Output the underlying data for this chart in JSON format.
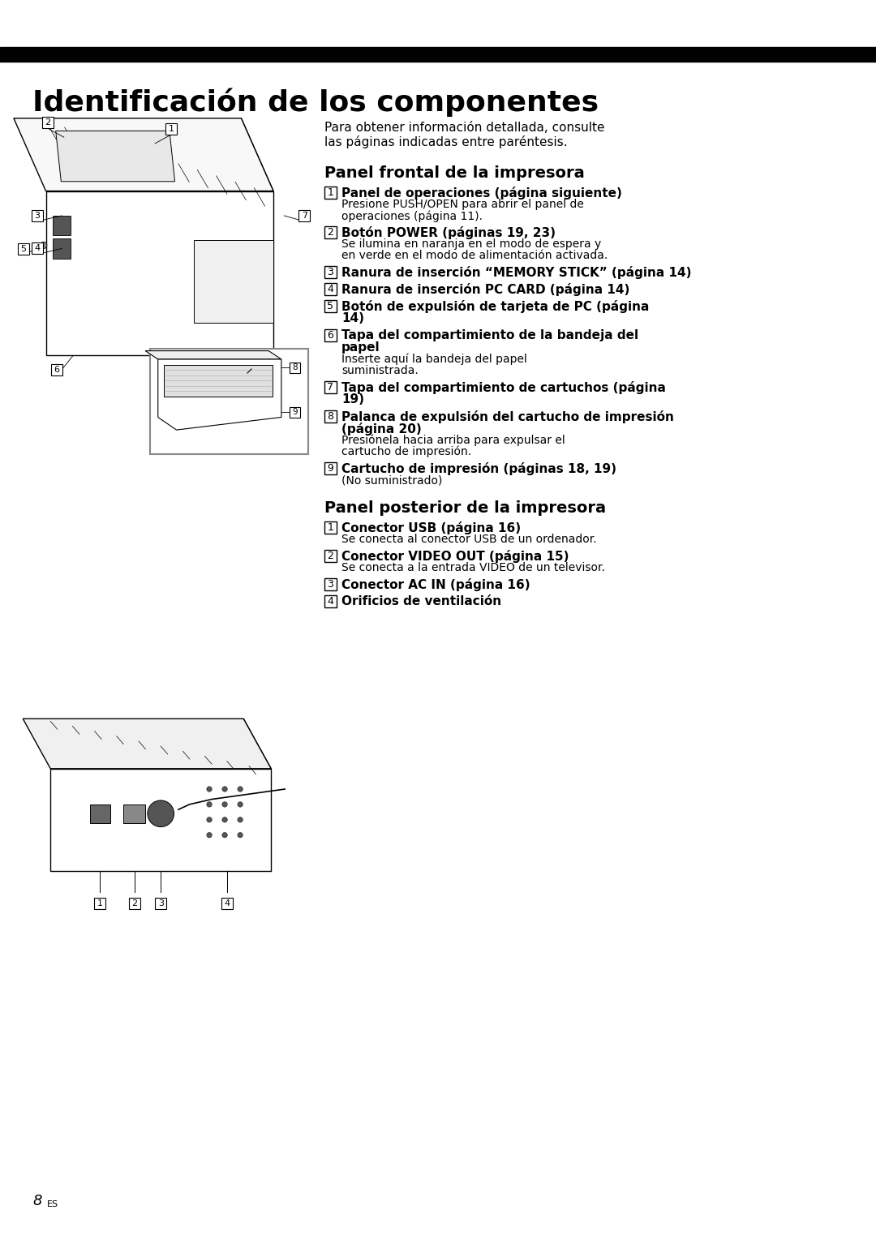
{
  "page_bg": "#ffffff",
  "title_bar_color": "#000000",
  "title_text": "Identificación de los componentes",
  "body_text_color": "#000000",
  "intro_text": "Para obtener información detallada,\nconsulte las páginas indicadas entre\nparéntesis.",
  "section1_title": "Panel frontal de la impresora",
  "section2_title": "Panel posterior de la impresora",
  "items_front": [
    {
      "num": "1",
      "bold": "Panel de operaciones (página siguiente)",
      "normal": "Presione PUSH/OPEN para abrir el panel de operaciones (página 11)."
    },
    {
      "num": "2",
      "bold": "Botón POWER (páginas 19, 23)",
      "normal": "Se ilumina en naranja en el modo de espera y en verde en el modo de alimentación activada."
    },
    {
      "num": "3",
      "bold": "Ranura de inserción “MEMORY STICK” (página 14)",
      "normal": ""
    },
    {
      "num": "4",
      "bold": "Ranura de inserción PC CARD (página 14)",
      "normal": ""
    },
    {
      "num": "5",
      "bold": "Botón de expulsión de tarjeta de PC (página 14)",
      "normal": ""
    },
    {
      "num": "6",
      "bold": "Tapa del compartimiento de la bandeja del papel",
      "normal": "Inserte aquí la bandeja del papel suministrada."
    },
    {
      "num": "7",
      "bold": "Tapa del compartimiento de cartuchos (página 19)",
      "normal": ""
    },
    {
      "num": "8",
      "bold": "Palanca de expulsión del cartucho de impresión (página 20)",
      "normal": "Presiónela hacia arriba para expulsar el cartucho de impresión."
    },
    {
      "num": "9",
      "bold": "Cartucho de impresión (páginas 18, 19)",
      "normal": "(No suministrado)"
    }
  ],
  "items_rear": [
    {
      "num": "1",
      "bold": "Conector USB (página 16)",
      "normal": "Se conecta al conector USB de un ordenador."
    },
    {
      "num": "2",
      "bold": "Conector VIDEO OUT (página 15)",
      "normal": "Se conecta a la entrada VIDEO de un televisor."
    },
    {
      "num": "3",
      "bold": "Conector AC IN (página 16)",
      "normal": ""
    },
    {
      "num": "4",
      "bold": "Orificios de ventilación",
      "normal": ""
    }
  ]
}
